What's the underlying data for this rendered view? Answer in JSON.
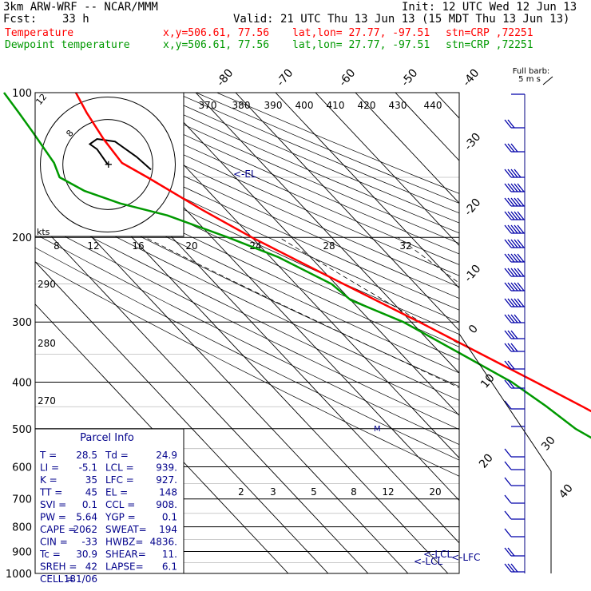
{
  "header": {
    "model": "3km ARW-WRF -- NCAR/MMM",
    "init": "Init: 12 UTC Wed 12 Jun 13",
    "fcst_label": "Fcst:",
    "fcst_value": "33 h",
    "valid": "Valid: 21 UTC Thu 13 Jun 13 (15 MDT Thu 13 Jun 13)",
    "temp_line": {
      "name": "Temperature",
      "xy": "x,y=506.61, 77.56",
      "latlon": "lat,lon= 27.77, -97.51",
      "stn": "stn=CRP ,72251",
      "color": "#ff0000"
    },
    "dew_line": {
      "name": "Dewpoint temperature",
      "xy": "x,y=506.61, 77.56",
      "latlon": "lat,lon= 27.77, -97.51",
      "stn": "stn=CRP ,72251",
      "color": "#009900"
    }
  },
  "colors": {
    "temperature": "#ff0000",
    "dewpoint": "#009900",
    "text_blue": "#00008b",
    "isotherm": "#000000"
  },
  "chart_data": {
    "type": "line",
    "diagram": "skew-T log-P",
    "pressure_levels": [
      100,
      200,
      300,
      400,
      500,
      600,
      700,
      800,
      900,
      1000
    ],
    "temperature_ticks": [
      -80,
      -70,
      -60,
      -50,
      -40,
      -30,
      -20,
      -10,
      0,
      10,
      20,
      30,
      40
    ],
    "theta_ticks": [
      370,
      380,
      390,
      400,
      410,
      420,
      430,
      440
    ],
    "inset_theta_ticks": [
      290,
      280,
      270
    ],
    "mixing_ratio_ticks": [
      "2",
      "3",
      "5",
      "8",
      "12",
      "20"
    ],
    "kts_label": "kts",
    "hodograph_speed_ticks": [
      "8",
      "12",
      "16",
      "20",
      "24",
      "28",
      "32"
    ],
    "hodograph_ring_labels": [
      "8",
      "12"
    ],
    "hodo_ring_kts": [
      8,
      12
    ],
    "hodograph_trace": [
      [
        0,
        0
      ],
      [
        -3,
        6
      ],
      [
        -5,
        8
      ],
      [
        -3,
        10
      ],
      [
        2,
        9
      ],
      [
        8,
        3
      ],
      [
        12,
        -2
      ]
    ],
    "series": [
      {
        "name": "Temperature",
        "points": [
          [
            1000,
            31
          ],
          [
            970,
            26
          ],
          [
            950,
            25
          ],
          [
            925,
            25
          ],
          [
            900,
            24.6
          ],
          [
            850,
            23
          ],
          [
            800,
            20
          ],
          [
            750,
            16.5
          ],
          [
            700,
            13
          ],
          [
            650,
            9
          ],
          [
            600,
            5.5
          ],
          [
            550,
            2
          ],
          [
            500,
            -2
          ],
          [
            450,
            -7
          ],
          [
            400,
            -13
          ],
          [
            350,
            -20
          ],
          [
            300,
            -28
          ],
          [
            250,
            -38
          ],
          [
            200,
            -50
          ],
          [
            175,
            -56
          ],
          [
            150,
            -62
          ],
          [
            140,
            -65
          ],
          [
            125,
            -64
          ],
          [
            110,
            -62
          ],
          [
            100,
            -60
          ]
        ]
      },
      {
        "name": "Dewpoint temperature",
        "points": [
          [
            1000,
            21
          ],
          [
            970,
            20
          ],
          [
            950,
            19
          ],
          [
            925,
            17
          ],
          [
            900,
            12
          ],
          [
            850,
            7
          ],
          [
            800,
            5
          ],
          [
            750,
            3
          ],
          [
            700,
            1
          ],
          [
            650,
            -1
          ],
          [
            600,
            -3
          ],
          [
            550,
            -10
          ],
          [
            500,
            -14
          ],
          [
            450,
            -16
          ],
          [
            400,
            -19
          ],
          [
            350,
            -25
          ],
          [
            300,
            -32
          ],
          [
            270,
            -40
          ],
          [
            250,
            -41
          ],
          [
            220,
            -48
          ],
          [
            200,
            -56
          ],
          [
            180,
            -66
          ],
          [
            170,
            -75
          ],
          [
            160,
            -81
          ],
          [
            150,
            -84
          ],
          [
            140,
            -82
          ],
          [
            120,
            -80
          ],
          [
            110,
            -79
          ],
          [
            100,
            -78
          ]
        ]
      }
    ],
    "markers": {
      "el": "<-EL",
      "lcl": "<-LCL",
      "lfc": "<-LFC",
      "lcl2": "<-LCL",
      "ccl": "<-CCL"
    },
    "wind_legend": {
      "title": "Full barb:",
      "value": "5 m s"
    },
    "wind_speed_ticks": [
      "-40",
      "-30",
      "-20",
      "-10",
      "0",
      "10",
      "20",
      "30",
      "40"
    ]
  },
  "parcel_info": {
    "title": "Parcel Info",
    "rows": [
      [
        "T  =",
        "28.5",
        "Td =",
        "24.9"
      ],
      [
        "LI =",
        "-5.1",
        "LCL =",
        "939."
      ],
      [
        "K  =",
        "35",
        "LFC =",
        "927."
      ],
      [
        "TT =",
        "45",
        "EL  =",
        "148"
      ],
      [
        "SVI =",
        "0.1",
        "CCL =",
        "908."
      ],
      [
        "PW =",
        "5.64",
        "YGP =",
        "0.1"
      ],
      [
        "CAPE =",
        "2062",
        "SWEAT=",
        "194"
      ],
      [
        "CIN =",
        "-33",
        "HWBZ=",
        "4836."
      ],
      [
        "Tc =",
        "30.9",
        "SHEAR=",
        "11."
      ],
      [
        "SREH =",
        "42",
        "LAPSE=",
        "6.1"
      ],
      [
        "CELL =",
        "181/06",
        "",
        ""
      ]
    ]
  }
}
